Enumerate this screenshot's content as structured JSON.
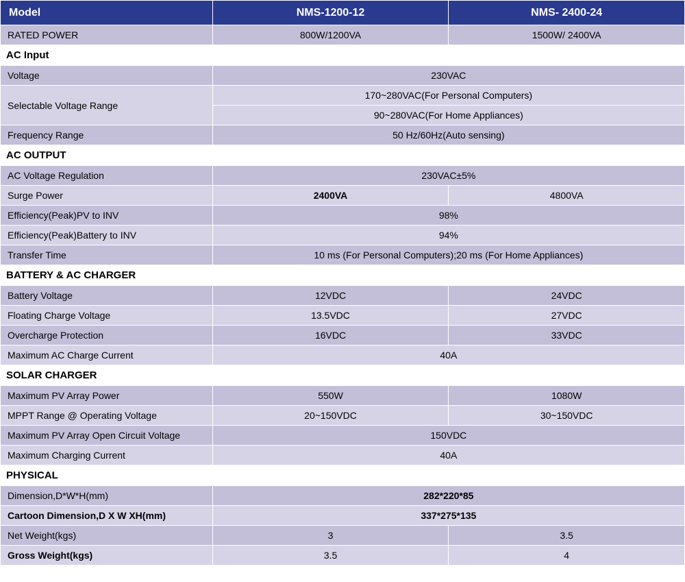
{
  "colors": {
    "header_bg": "#2a3a8f",
    "header_fg": "#ffffff",
    "row_bg_a": "#c3bfd9",
    "row_bg_b": "#d6d3e6",
    "section_bg": "#ffffff",
    "border": "#ffffff"
  },
  "header": {
    "model_label": "Model",
    "model_a": "NMS-1200-12",
    "model_b": "NMS- 2400-24"
  },
  "rated_power": {
    "label": "RATED POWER",
    "a": "800W/1200VA",
    "b": "1500W/ 2400VA"
  },
  "ac_input": {
    "title": "AC Input",
    "voltage": {
      "label": "Voltage",
      "val": "230VAC"
    },
    "sel_range": {
      "label": "Selectable Voltage Range",
      "line1": "170~280VAC(For Personal Computers)",
      "line2": "90~280VAC(For Home Appliances)"
    },
    "freq": {
      "label": "Frequency Range",
      "val": "50 Hz/60Hz(Auto sensing)"
    }
  },
  "ac_output": {
    "title": "AC OUTPUT",
    "reg": {
      "label": "AC  Voltage  Regulation",
      "val": "230VAC±5%"
    },
    "surge": {
      "label": "Surge Power",
      "a": "2400VA",
      "b": "4800VA"
    },
    "eff_pv": {
      "label": "Efficiency(Peak)PV to INV",
      "val": "98%"
    },
    "eff_bat": {
      "label": "Efficiency(Peak)Battery to INV",
      "val": "94%"
    },
    "transfer": {
      "label": "Transfer Time",
      "val": "10 ms (For Personal Computers);20 ms (For Home Appliances)"
    }
  },
  "battery": {
    "title": "BATTERY & AC CHARGER",
    "voltage": {
      "label": "Battery Voltage",
      "a": "12VDC",
      "b": "24VDC"
    },
    "float": {
      "label": "Floating Charge Voltage",
      "a": "13.5VDC",
      "b": "27VDC"
    },
    "over": {
      "label": "Overcharge Protection",
      "a": "16VDC",
      "b": "33VDC"
    },
    "max_ac": {
      "label": "Maximum  AC Charge Current",
      "val": "40A"
    }
  },
  "solar": {
    "title": "SOLAR CHARGER",
    "max_pv": {
      "label": "Maximum PV Array Power",
      "a": "550W",
      "b": "1080W"
    },
    "mppt": {
      "label": "MPPT Range @ Operating Voltage",
      "a": "20~150VDC",
      "b": "30~150VDC"
    },
    "open": {
      "label": "Maximum PV Array Open Circuit Voltage",
      "val": "150VDC"
    },
    "max_chg": {
      "label": "Maximum Charging Current",
      "val": "40A"
    }
  },
  "physical": {
    "title": "PHYSICAL",
    "dim": {
      "label": "Dimension,D*W*H(mm)",
      "val": "282*220*85"
    },
    "carton": {
      "label": "Cartoon Dimension,D X W XH(mm)",
      "val": "337*275*135"
    },
    "net": {
      "label": "Net Weight(kgs)",
      "a": "3",
      "b": "3.5"
    },
    "gross": {
      "label": "Gross Weight(kgs)",
      "a": "3.5",
      "b": "4"
    }
  }
}
